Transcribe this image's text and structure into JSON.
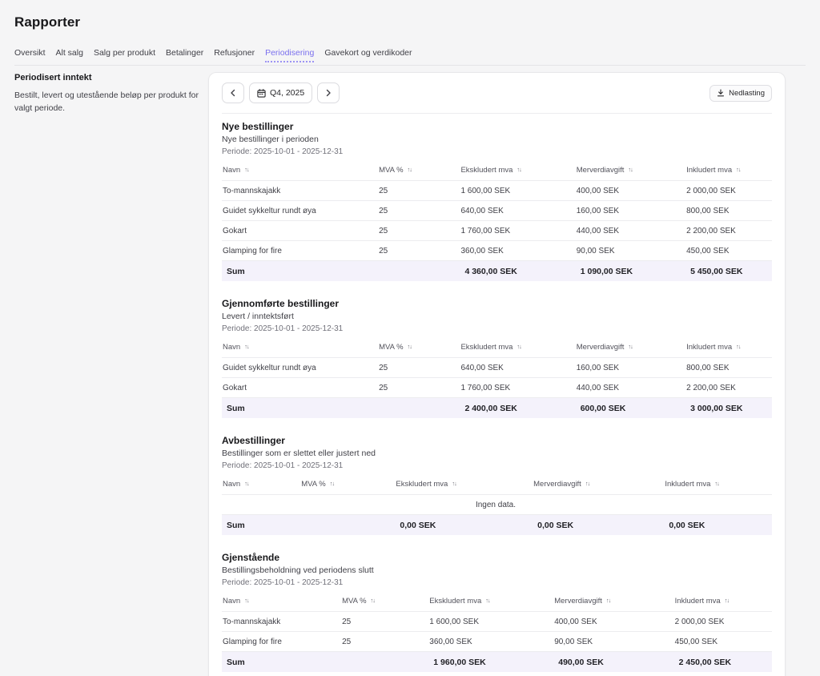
{
  "page": {
    "title": "Rapporter"
  },
  "tabs": [
    {
      "label": "Oversikt",
      "active": false
    },
    {
      "label": "Alt salg",
      "active": false
    },
    {
      "label": "Salg per produkt",
      "active": false
    },
    {
      "label": "Betalinger",
      "active": false
    },
    {
      "label": "Refusjoner",
      "active": false
    },
    {
      "label": "Periodisering",
      "active": true
    },
    {
      "label": "Gavekort og verdikoder",
      "active": false
    }
  ],
  "sidebar": {
    "heading": "Periodisert inntekt",
    "description": "Bestilt, levert og utestående beløp per produkt for valgt periode."
  },
  "toolbar": {
    "period_label": "Q4, 2025",
    "download_label": "Nedlasting"
  },
  "colors": {
    "accent": "#7b70ee",
    "sum_row_bg": "#f4f2fb"
  },
  "table": {
    "headers": [
      "Navn",
      "MVA %",
      "Ekskludert mva",
      "Merverdiavgift",
      "Inkludert mva"
    ],
    "empty_text": "Ingen data.",
    "sum_label": "Sum"
  },
  "sections": [
    {
      "title": "Nye bestillinger",
      "subtitle": "Nye bestillinger i perioden",
      "period": "Periode: 2025-10-01 - 2025-12-31",
      "rows": [
        [
          "To-mannskajakk",
          "25",
          "1 600,00 SEK",
          "400,00 SEK",
          "2 000,00 SEK"
        ],
        [
          "Guidet sykkeltur rundt øya",
          "25",
          "640,00 SEK",
          "160,00 SEK",
          "800,00 SEK"
        ],
        [
          "Gokart",
          "25",
          "1 760,00 SEK",
          "440,00 SEK",
          "2 200,00 SEK"
        ],
        [
          "Glamping for fire",
          "25",
          "360,00 SEK",
          "90,00 SEK",
          "450,00 SEK"
        ]
      ],
      "sum": [
        "",
        "4 360,00 SEK",
        "1 090,00 SEK",
        "5 450,00 SEK"
      ]
    },
    {
      "title": "Gjennomførte bestillinger",
      "subtitle": "Levert / inntektsført",
      "period": "Periode: 2025-10-01 - 2025-12-31",
      "rows": [
        [
          "Guidet sykkeltur rundt øya",
          "25",
          "640,00 SEK",
          "160,00 SEK",
          "800,00 SEK"
        ],
        [
          "Gokart",
          "25",
          "1 760,00 SEK",
          "440,00 SEK",
          "2 200,00 SEK"
        ]
      ],
      "sum": [
        "",
        "2 400,00 SEK",
        "600,00 SEK",
        "3 000,00 SEK"
      ]
    },
    {
      "title": "Avbestillinger",
      "subtitle": "Bestillinger som er slettet eller justert ned",
      "period": "Periode: 2025-10-01 - 2025-12-31",
      "rows": [],
      "sum": [
        "",
        "0,00 SEK",
        "0,00 SEK",
        "0,00 SEK"
      ]
    },
    {
      "title": "Gjenstående",
      "subtitle": "Bestillingsbeholdning ved periodens slutt",
      "period": "Periode: 2025-10-01 - 2025-12-31",
      "rows": [
        [
          "To-mannskajakk",
          "25",
          "1 600,00 SEK",
          "400,00 SEK",
          "2 000,00 SEK"
        ],
        [
          "Glamping for fire",
          "25",
          "360,00 SEK",
          "90,00 SEK",
          "450,00 SEK"
        ]
      ],
      "sum": [
        "",
        "1 960,00 SEK",
        "490,00 SEK",
        "2 450,00 SEK"
      ]
    }
  ]
}
